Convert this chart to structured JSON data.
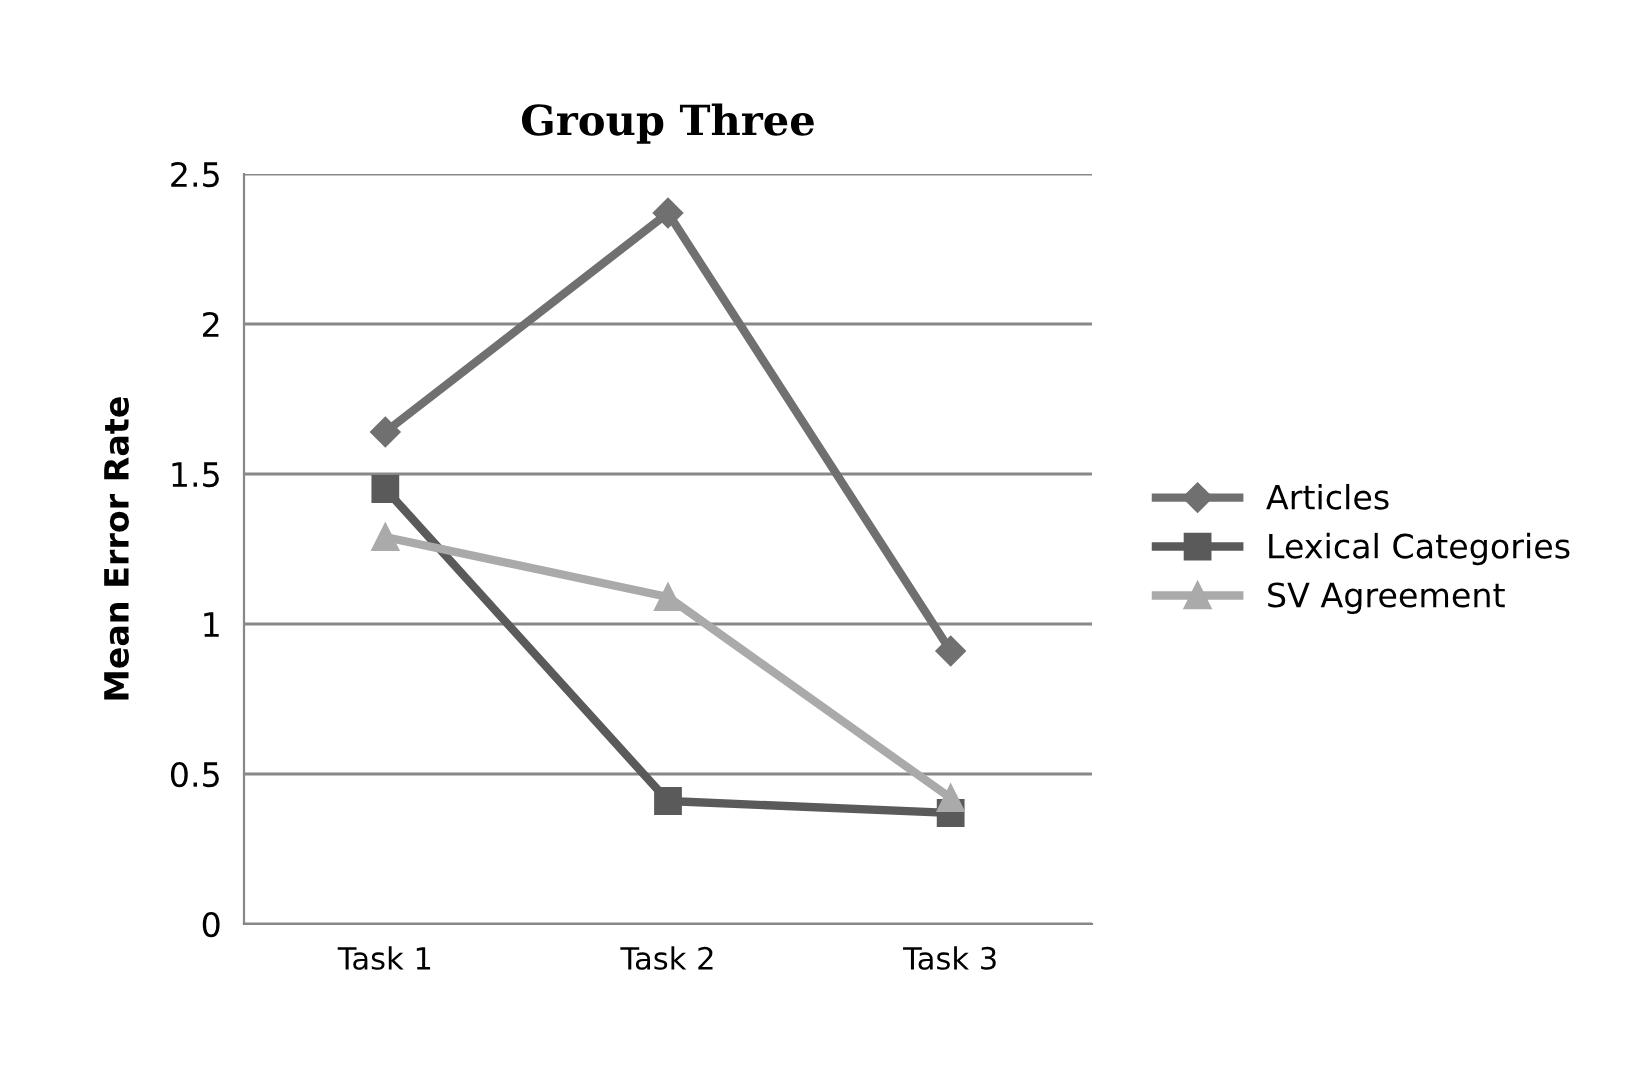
{
  "chart_data": {
    "type": "line",
    "title": "Group Three",
    "ylabel": "Mean Error Rate",
    "categories": [
      "Task 1",
      "Task 2",
      "Task 3"
    ],
    "series": [
      {
        "name": "Articles",
        "color": "#707070",
        "marker": "diamond",
        "values": [
          1.64,
          2.37,
          0.91
        ]
      },
      {
        "name": "Lexical Categories",
        "color": "#5a5a5a",
        "marker": "square",
        "values": [
          1.45,
          0.41,
          0.37
        ]
      },
      {
        "name": "SV Agreement",
        "color": "#aaaaaa",
        "marker": "triangle",
        "values": [
          1.29,
          1.09,
          0.42
        ]
      }
    ],
    "ylim": [
      0,
      2.5
    ],
    "yticks": [
      0,
      0.5,
      1,
      1.5,
      2,
      2.5
    ],
    "grid": "y",
    "legend": "right"
  }
}
